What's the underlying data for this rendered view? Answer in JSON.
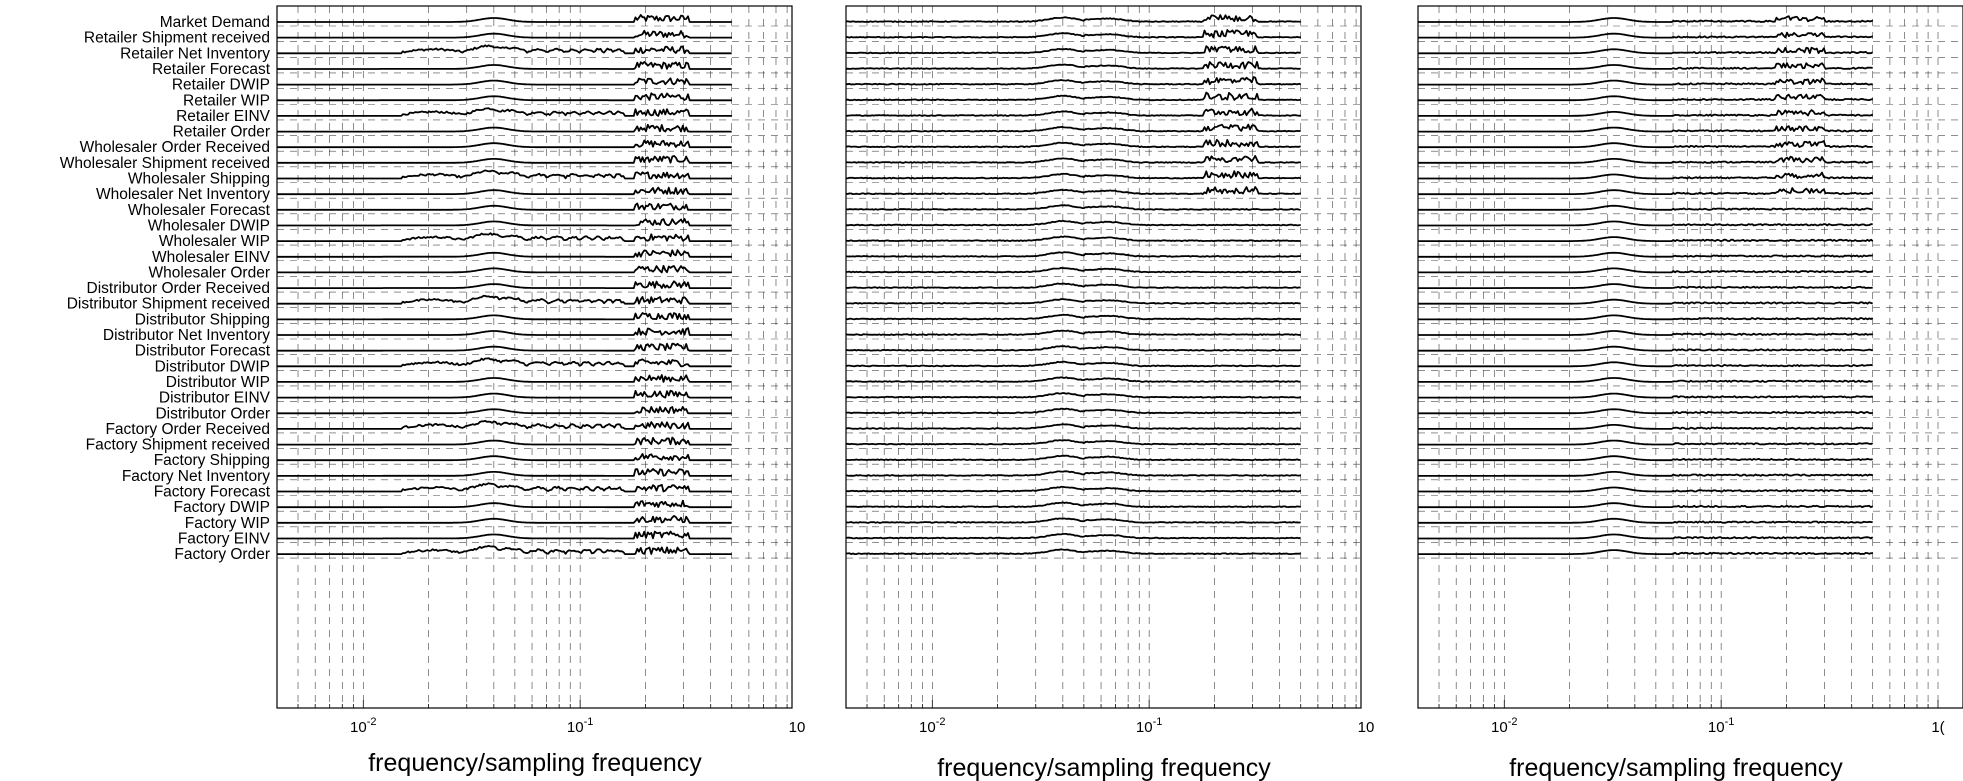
{
  "chart_data": [
    {
      "type": "line",
      "panel": "left",
      "x_scale": "log",
      "xlim": [
        0.004,
        1
      ],
      "xlabel": "frequency/sampling frequency",
      "x_tick_labels": [
        "10-2",
        "10-1",
        "10"
      ],
      "x_ticks": [
        0.01,
        0.1,
        1
      ],
      "grid": true,
      "row_labels": [
        "Market Demand",
        "Retailer Shipment received",
        "Retailer Net Inventory",
        "Retailer Forecast",
        "Retailer DWIP",
        "Retailer WIP",
        "Retailer EINV",
        "Retailer Order",
        "Wholesaler Order Received",
        "Wholesaler Shipment received",
        "Wholesaler Shipping",
        "Wholesaler Net Inventory",
        "Wholesaler Forecast",
        "Wholesaler DWIP",
        "Wholesaler WIP",
        "Wholesaler EINV",
        "Wholesaler Order",
        "Distributor Order Received",
        "Distributor Shipment received",
        "Distributor Shipping",
        "Distributor Net Inventory",
        "Distributor Forecast",
        "Distributor DWIP",
        "Distributor WIP",
        "Distributor EINV",
        "Distributor Order",
        "Factory Order Received",
        "Factory Shipment received",
        "Factory Shipping",
        "Factory Net Inventory",
        "Factory Forecast",
        "Factory DWIP",
        "Factory WIP",
        "Factory EINV",
        "Factory Order"
      ]
    },
    {
      "type": "line",
      "panel": "middle",
      "x_scale": "log",
      "xlim": [
        0.004,
        1
      ],
      "xlabel": "frequency/sampling frequency",
      "x_tick_labels": [
        "10-2",
        "10-1",
        "10"
      ],
      "x_ticks": [
        0.01,
        0.1,
        1
      ],
      "grid": true
    },
    {
      "type": "line",
      "panel": "right",
      "x_scale": "log",
      "xlim": [
        0.004,
        1
      ],
      "xlabel": "frequency/sampling frequency",
      "x_tick_labels": [
        "10-2",
        "10-1",
        "1("
      ],
      "x_ticks": [
        0.01,
        0.1,
        1
      ],
      "grid": true
    }
  ]
}
